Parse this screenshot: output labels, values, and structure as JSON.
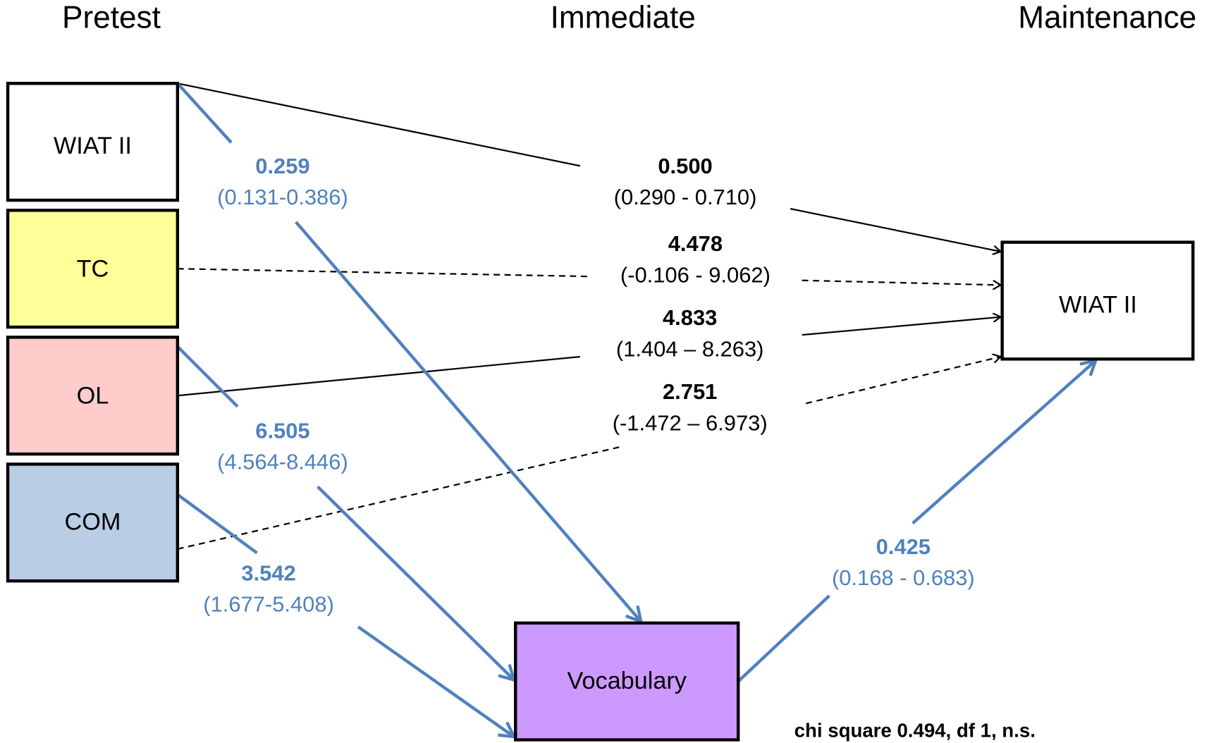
{
  "headers": [
    "Pretest",
    "Immediate",
    "Maintenance"
  ],
  "nodes": [
    "WIAT II",
    "TC",
    "OL",
    "COM",
    "Vocabulary",
    "WIAT II"
  ],
  "paths": [
    {
      "estimate": "0.259",
      "ci": "(0.131-0.386)"
    },
    {
      "estimate": "6.505",
      "ci": "(4.564-8.446)"
    },
    {
      "estimate": "3.542",
      "ci": "(1.677-5.408)"
    },
    {
      "estimate": "0.425",
      "ci": "(0.168 - 0.683)"
    },
    {
      "estimate": "0.500",
      "ci": "(0.290 - 0.710)"
    },
    {
      "estimate": "4.478",
      "ci": "(-0.106 - 9.062)"
    },
    {
      "estimate": "4.833",
      "ci": "(1.404 – 8.263)"
    },
    {
      "estimate": "2.751",
      "ci": "(-1.472 – 6.973)"
    }
  ],
  "note": "chi square 0.494, df 1, n.s."
}
